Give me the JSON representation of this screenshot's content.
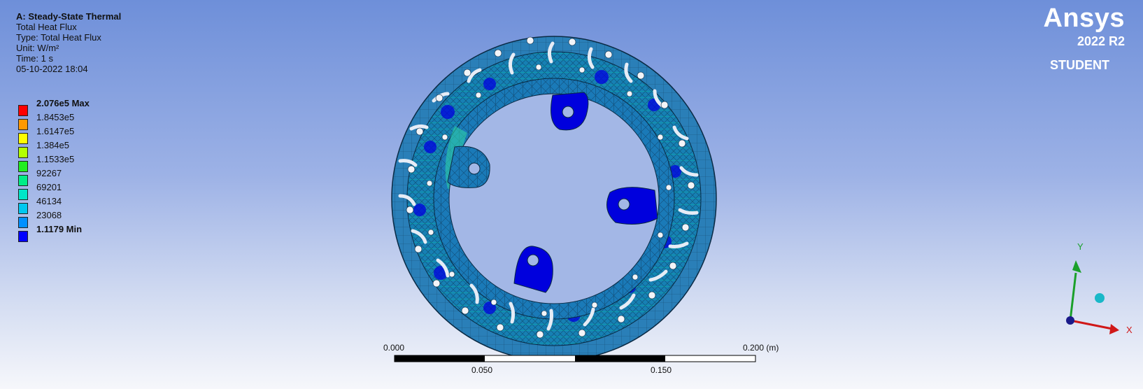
{
  "info": {
    "title": "A: Steady-State Thermal",
    "result_name": "Total Heat Flux",
    "type": "Type: Total Heat Flux",
    "unit": "Unit: W/m²",
    "time": "Time: 1 s",
    "date": "05-10-2022 18:04"
  },
  "legend": {
    "items": [
      {
        "label": "2.076e5 Max",
        "color": "#ff0000",
        "bold": true
      },
      {
        "label": "1.8453e5",
        "color": "#ff9900"
      },
      {
        "label": "1.6147e5",
        "color": "#ffff00"
      },
      {
        "label": "1.384e5",
        "color": "#b3ff00"
      },
      {
        "label": "1.1533e5",
        "color": "#22ee22"
      },
      {
        "label": "92267",
        "color": "#00ee88"
      },
      {
        "label": "69201",
        "color": "#00e6c8"
      },
      {
        "label": "46134",
        "color": "#00c8f0"
      },
      {
        "label": "23068",
        "color": "#0090ff"
      },
      {
        "label": "1.1179 Min",
        "color": "#0000ff",
        "bold": true
      }
    ]
  },
  "logo": {
    "brand": "Ansys",
    "version": "2022 R2",
    "edition": "STUDENT"
  },
  "scale_bar": {
    "label_0": "0.000",
    "label_1": "0.050",
    "label_2": "0.150",
    "label_3": "0.200 (m)"
  },
  "triad": {
    "x_label": "X",
    "y_label": "Y"
  },
  "colors": {
    "mesh_fill": "#1a7ab8",
    "mesh_line": "#0a2a44",
    "low_flux": "#0000e0",
    "accent": "#00e6c8"
  }
}
